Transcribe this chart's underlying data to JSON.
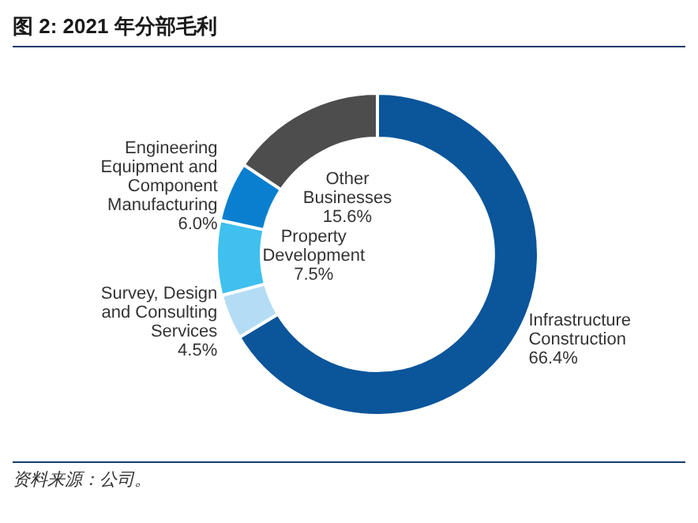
{
  "chart_data": {
    "type": "donut",
    "title": "图 2: 2021 年分部毛利",
    "categories": [
      "Infrastructure Construction",
      "Survey, Design and Consulting Services",
      "Property Development",
      "Engineering Equipment and Component Manufacturing",
      "Other Businesses"
    ],
    "values": [
      66.4,
      4.5,
      7.5,
      6.0,
      15.6
    ],
    "value_labels": [
      "66.4%",
      "4.5%",
      "7.5%",
      "6.0%",
      "15.6%"
    ],
    "colors": [
      "#0b559b",
      "#b4dcf5",
      "#3fc0ee",
      "#0a7fd0",
      "#4d4d4d"
    ],
    "legend": false,
    "annotations": [
      "资料来源：公司。"
    ]
  }
}
